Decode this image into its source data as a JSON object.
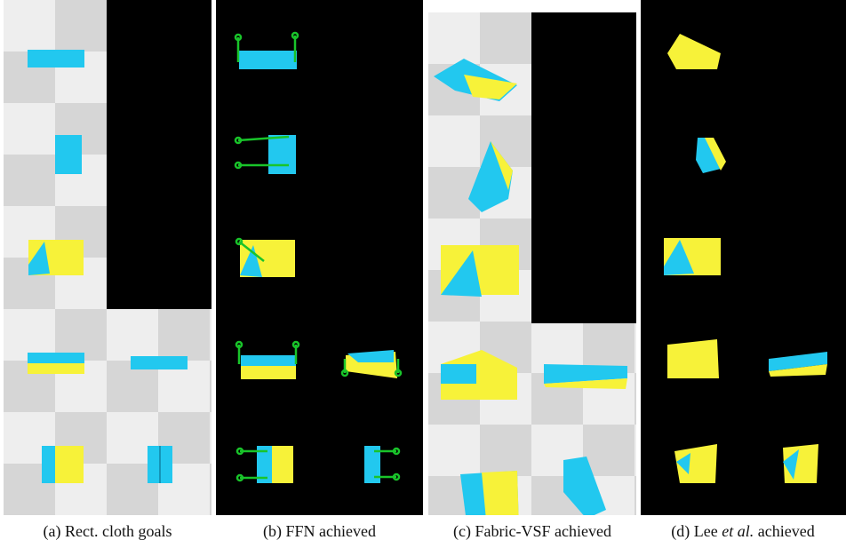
{
  "captions": {
    "a": "(a) Rect. cloth goals",
    "b": "(b) FFN achieved",
    "c_prefix": "(c) Fabric-VSF achieved",
    "d_prefix": "(d) Lee ",
    "d_italic": "et al.",
    "d_suffix": " achieved"
  },
  "colors": {
    "cloth_top": "#22c8ef",
    "cloth_bottom": "#f7f239",
    "grid_light": "#eeeeee",
    "grid_dark": "#d6d6d6",
    "background_black": "#000000",
    "pick_place_arrow": "#19c42a"
  }
}
